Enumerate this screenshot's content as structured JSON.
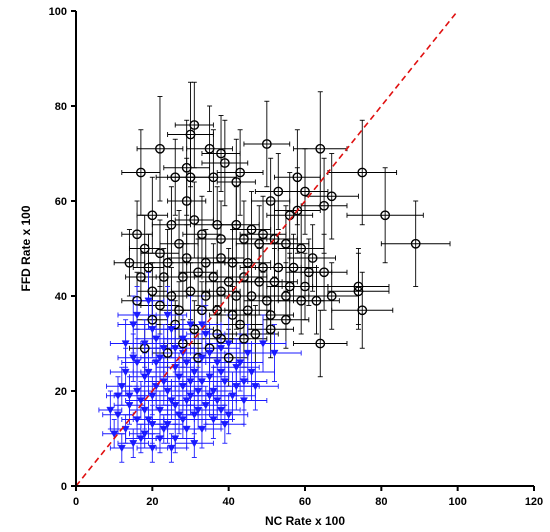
{
  "chart_data": {
    "type": "scatter",
    "title": "",
    "xlabel": "NC Rate x 100",
    "ylabel": "FFD Rate x 100",
    "xlim": [
      0,
      120
    ],
    "ylim": [
      0,
      100
    ],
    "x_ticks": [
      "0",
      "20",
      "40",
      "60",
      "80",
      "100",
      "120"
    ],
    "y_ticks": [
      "0",
      "20",
      "40",
      "60",
      "80",
      "100"
    ],
    "grid": false,
    "reference_line": {
      "type": "identity",
      "from": [
        0,
        0
      ],
      "to": [
        100,
        100
      ],
      "color": "#e01010",
      "style": "dashed"
    },
    "series": [
      {
        "marker": "open-circle",
        "color": "#000000",
        "points": [
          [
            22,
            71,
            6,
            11
          ],
          [
            30,
            74,
            6,
            11
          ],
          [
            35,
            71,
            6,
            9
          ],
          [
            38,
            70,
            5,
            8
          ],
          [
            50,
            72,
            6,
            9
          ],
          [
            64,
            71,
            7,
            12
          ],
          [
            31,
            76,
            5,
            9
          ],
          [
            17,
            66,
            5,
            9
          ],
          [
            29,
            67,
            6,
            10
          ],
          [
            26,
            65,
            5,
            8
          ],
          [
            30,
            65,
            6,
            9
          ],
          [
            36,
            65,
            6,
            10
          ],
          [
            43,
            66,
            6,
            9
          ],
          [
            42,
            64,
            5,
            9
          ],
          [
            39,
            68,
            6,
            9
          ],
          [
            58,
            65,
            6,
            10
          ],
          [
            75,
            66,
            9,
            11
          ],
          [
            60,
            62,
            6,
            9
          ],
          [
            53,
            62,
            6,
            8
          ],
          [
            67,
            61,
            7,
            9
          ],
          [
            65,
            59,
            6,
            10
          ],
          [
            51,
            60,
            5,
            9
          ],
          [
            29,
            60,
            5,
            9
          ],
          [
            20,
            57,
            4,
            8
          ],
          [
            31,
            56,
            5,
            8
          ],
          [
            25,
            55,
            5,
            8
          ],
          [
            37,
            55,
            6,
            8
          ],
          [
            42,
            55,
            6,
            8
          ],
          [
            46,
            54,
            5,
            8
          ],
          [
            49,
            53,
            6,
            8
          ],
          [
            52,
            52,
            6,
            8
          ],
          [
            56,
            57,
            6,
            9
          ],
          [
            58,
            58,
            6,
            9
          ],
          [
            81,
            57,
            10,
            10
          ],
          [
            89,
            51,
            9,
            9
          ],
          [
            16,
            53,
            4,
            7
          ],
          [
            18,
            50,
            4,
            7
          ],
          [
            22,
            49,
            5,
            7
          ],
          [
            27,
            51,
            5,
            7
          ],
          [
            33,
            53,
            5,
            8
          ],
          [
            38,
            52,
            6,
            8
          ],
          [
            44,
            52,
            6,
            8
          ],
          [
            48,
            51,
            6,
            8
          ],
          [
            55,
            51,
            6,
            8
          ],
          [
            59,
            50,
            6,
            8
          ],
          [
            62,
            48,
            6,
            7
          ],
          [
            14,
            47,
            4,
            7
          ],
          [
            19,
            46,
            4,
            7
          ],
          [
            24,
            47,
            5,
            7
          ],
          [
            29,
            48,
            5,
            7
          ],
          [
            34,
            47,
            5,
            7
          ],
          [
            38,
            48,
            6,
            7
          ],
          [
            41,
            47,
            5,
            7
          ],
          [
            45,
            47,
            6,
            7
          ],
          [
            49,
            46,
            6,
            7
          ],
          [
            53,
            46,
            6,
            7
          ],
          [
            57,
            46,
            6,
            7
          ],
          [
            61,
            45,
            6,
            7
          ],
          [
            65,
            45,
            6,
            8
          ],
          [
            17,
            44,
            4,
            6
          ],
          [
            23,
            44,
            5,
            6
          ],
          [
            28,
            44,
            5,
            7
          ],
          [
            32,
            45,
            5,
            7
          ],
          [
            36,
            44,
            5,
            7
          ],
          [
            40,
            43,
            6,
            7
          ],
          [
            44,
            44,
            6,
            7
          ],
          [
            48,
            43,
            6,
            7
          ],
          [
            52,
            43,
            6,
            7
          ],
          [
            56,
            42,
            6,
            7
          ],
          [
            60,
            42,
            6,
            7
          ],
          [
            74,
            42,
            8,
            8
          ],
          [
            74,
            41,
            8,
            8
          ],
          [
            20,
            41,
            4,
            6
          ],
          [
            25,
            40,
            5,
            6
          ],
          [
            30,
            41,
            5,
            6
          ],
          [
            34,
            40,
            5,
            7
          ],
          [
            38,
            41,
            5,
            7
          ],
          [
            42,
            40,
            6,
            7
          ],
          [
            46,
            40,
            6,
            7
          ],
          [
            50,
            39,
            6,
            7
          ],
          [
            55,
            40,
            6,
            7
          ],
          [
            59,
            39,
            6,
            7
          ],
          [
            63,
            39,
            6,
            7
          ],
          [
            67,
            40,
            7,
            7
          ],
          [
            16,
            39,
            4,
            6
          ],
          [
            22,
            38,
            5,
            6
          ],
          [
            27,
            37,
            5,
            6
          ],
          [
            33,
            37,
            5,
            6
          ],
          [
            37,
            37,
            5,
            6
          ],
          [
            41,
            36,
            6,
            6
          ],
          [
            45,
            37,
            6,
            6
          ],
          [
            51,
            36,
            6,
            6
          ],
          [
            55,
            35,
            6,
            6
          ],
          [
            75,
            37,
            8,
            8
          ],
          [
            20,
            35,
            4,
            5
          ],
          [
            26,
            34,
            5,
            5
          ],
          [
            31,
            33,
            5,
            6
          ],
          [
            37,
            32,
            5,
            6
          ],
          [
            43,
            34,
            6,
            6
          ],
          [
            47,
            32,
            6,
            6
          ],
          [
            51,
            33,
            6,
            6
          ],
          [
            38,
            31,
            5,
            5
          ],
          [
            64,
            30,
            7,
            7
          ],
          [
            44,
            31,
            6,
            6
          ],
          [
            28,
            30,
            5,
            5
          ],
          [
            35,
            29,
            5,
            5
          ],
          [
            18,
            29,
            4,
            5
          ],
          [
            24,
            28,
            4,
            5
          ],
          [
            32,
            27,
            5,
            5
          ],
          [
            40,
            27,
            5,
            6
          ]
        ]
      },
      {
        "marker": "filled-triangle-down",
        "color": "#1a1aff",
        "points": [
          [
            16,
            36,
            5,
            6
          ],
          [
            20,
            33,
            5,
            6
          ],
          [
            25,
            33,
            5,
            6
          ],
          [
            30,
            34,
            5,
            6
          ],
          [
            34,
            32,
            5,
            6
          ],
          [
            40,
            30,
            6,
            6
          ],
          [
            45,
            28,
            6,
            6
          ],
          [
            18,
            30,
            5,
            5
          ],
          [
            23,
            29,
            5,
            5
          ],
          [
            28,
            28,
            5,
            5
          ],
          [
            33,
            27,
            5,
            6
          ],
          [
            37,
            26,
            5,
            5
          ],
          [
            42,
            25,
            6,
            6
          ],
          [
            15,
            27,
            4,
            5
          ],
          [
            21,
            26,
            5,
            5
          ],
          [
            26,
            25,
            5,
            5
          ],
          [
            31,
            24,
            5,
            5
          ],
          [
            35,
            23,
            5,
            5
          ],
          [
            39,
            22,
            6,
            5
          ],
          [
            44,
            22,
            6,
            6
          ],
          [
            13,
            24,
            4,
            5
          ],
          [
            18,
            23,
            4,
            5
          ],
          [
            23,
            22,
            5,
            5
          ],
          [
            28,
            21,
            5,
            5
          ],
          [
            32,
            20,
            5,
            5
          ],
          [
            36,
            20,
            5,
            5
          ],
          [
            41,
            19,
            6,
            5
          ],
          [
            12,
            21,
            4,
            4
          ],
          [
            16,
            20,
            4,
            4
          ],
          [
            20,
            19,
            4,
            4
          ],
          [
            25,
            18,
            5,
            4
          ],
          [
            29,
            18,
            5,
            4
          ],
          [
            34,
            17,
            5,
            4
          ],
          [
            38,
            16,
            5,
            4
          ],
          [
            14,
            17,
            4,
            4
          ],
          [
            18,
            16,
            4,
            4
          ],
          [
            22,
            16,
            4,
            4
          ],
          [
            27,
            15,
            5,
            4
          ],
          [
            31,
            15,
            5,
            4
          ],
          [
            36,
            14,
            5,
            4
          ],
          [
            11,
            15,
            4,
            4
          ],
          [
            16,
            14,
            4,
            4
          ],
          [
            20,
            13,
            4,
            4
          ],
          [
            24,
            13,
            4,
            4
          ],
          [
            29,
            12,
            5,
            4
          ],
          [
            33,
            12,
            5,
            4
          ],
          [
            13,
            12,
            4,
            3
          ],
          [
            18,
            11,
            4,
            3
          ],
          [
            22,
            10,
            4,
            3
          ],
          [
            26,
            10,
            5,
            3
          ],
          [
            31,
            9,
            5,
            3
          ],
          [
            10,
            11,
            3,
            3
          ],
          [
            15,
            9,
            4,
            3
          ],
          [
            20,
            8,
            4,
            3
          ],
          [
            25,
            8,
            4,
            3
          ],
          [
            12,
            8,
            3,
            3
          ],
          [
            19,
            24,
            4,
            5
          ],
          [
            24,
            20,
            5,
            5
          ],
          [
            27,
            23,
            5,
            5
          ],
          [
            17,
            18,
            4,
            4
          ],
          [
            21,
            21,
            4,
            5
          ],
          [
            26,
            17,
            5,
            4
          ],
          [
            30,
            19,
            5,
            4
          ],
          [
            14,
            19,
            4,
            4
          ],
          [
            33,
            22,
            5,
            5
          ],
          [
            38,
            24,
            5,
            5
          ],
          [
            42,
            21,
            6,
            5
          ],
          [
            46,
            24,
            6,
            6
          ],
          [
            22,
            27,
            5,
            5
          ],
          [
            29,
            26,
            5,
            5
          ],
          [
            35,
            28,
            5,
            5
          ],
          [
            19,
            14,
            4,
            4
          ],
          [
            23,
            12,
            4,
            3
          ],
          [
            28,
            14,
            5,
            4
          ],
          [
            17,
            10,
            4,
            3
          ],
          [
            32,
            16,
            5,
            4
          ],
          [
            37,
            18,
            5,
            4
          ],
          [
            40,
            15,
            5,
            4
          ],
          [
            9,
            16,
            3,
            4
          ],
          [
            11,
            19,
            3,
            4
          ],
          [
            28,
            31,
            5,
            5
          ],
          [
            24,
            36,
            5,
            6
          ],
          [
            19,
            39,
            4,
            6
          ],
          [
            15,
            34,
            4,
            6
          ],
          [
            33,
            34,
            5,
            6
          ],
          [
            38,
            29,
            5,
            5
          ],
          [
            43,
            26,
            6,
            6
          ],
          [
            47,
            21,
            6,
            5
          ],
          [
            26,
            29,
            5,
            5
          ],
          [
            21,
            31,
            5,
            5
          ],
          [
            30,
            22,
            5,
            5
          ],
          [
            35,
            19,
            5,
            4
          ],
          [
            39,
            13,
            5,
            4
          ],
          [
            44,
            18,
            6,
            5
          ],
          [
            49,
            30,
            6,
            6
          ],
          [
            52,
            28,
            7,
            6
          ],
          [
            16,
            26,
            4,
            5
          ],
          [
            13,
            30,
            4,
            5
          ]
        ]
      }
    ]
  }
}
